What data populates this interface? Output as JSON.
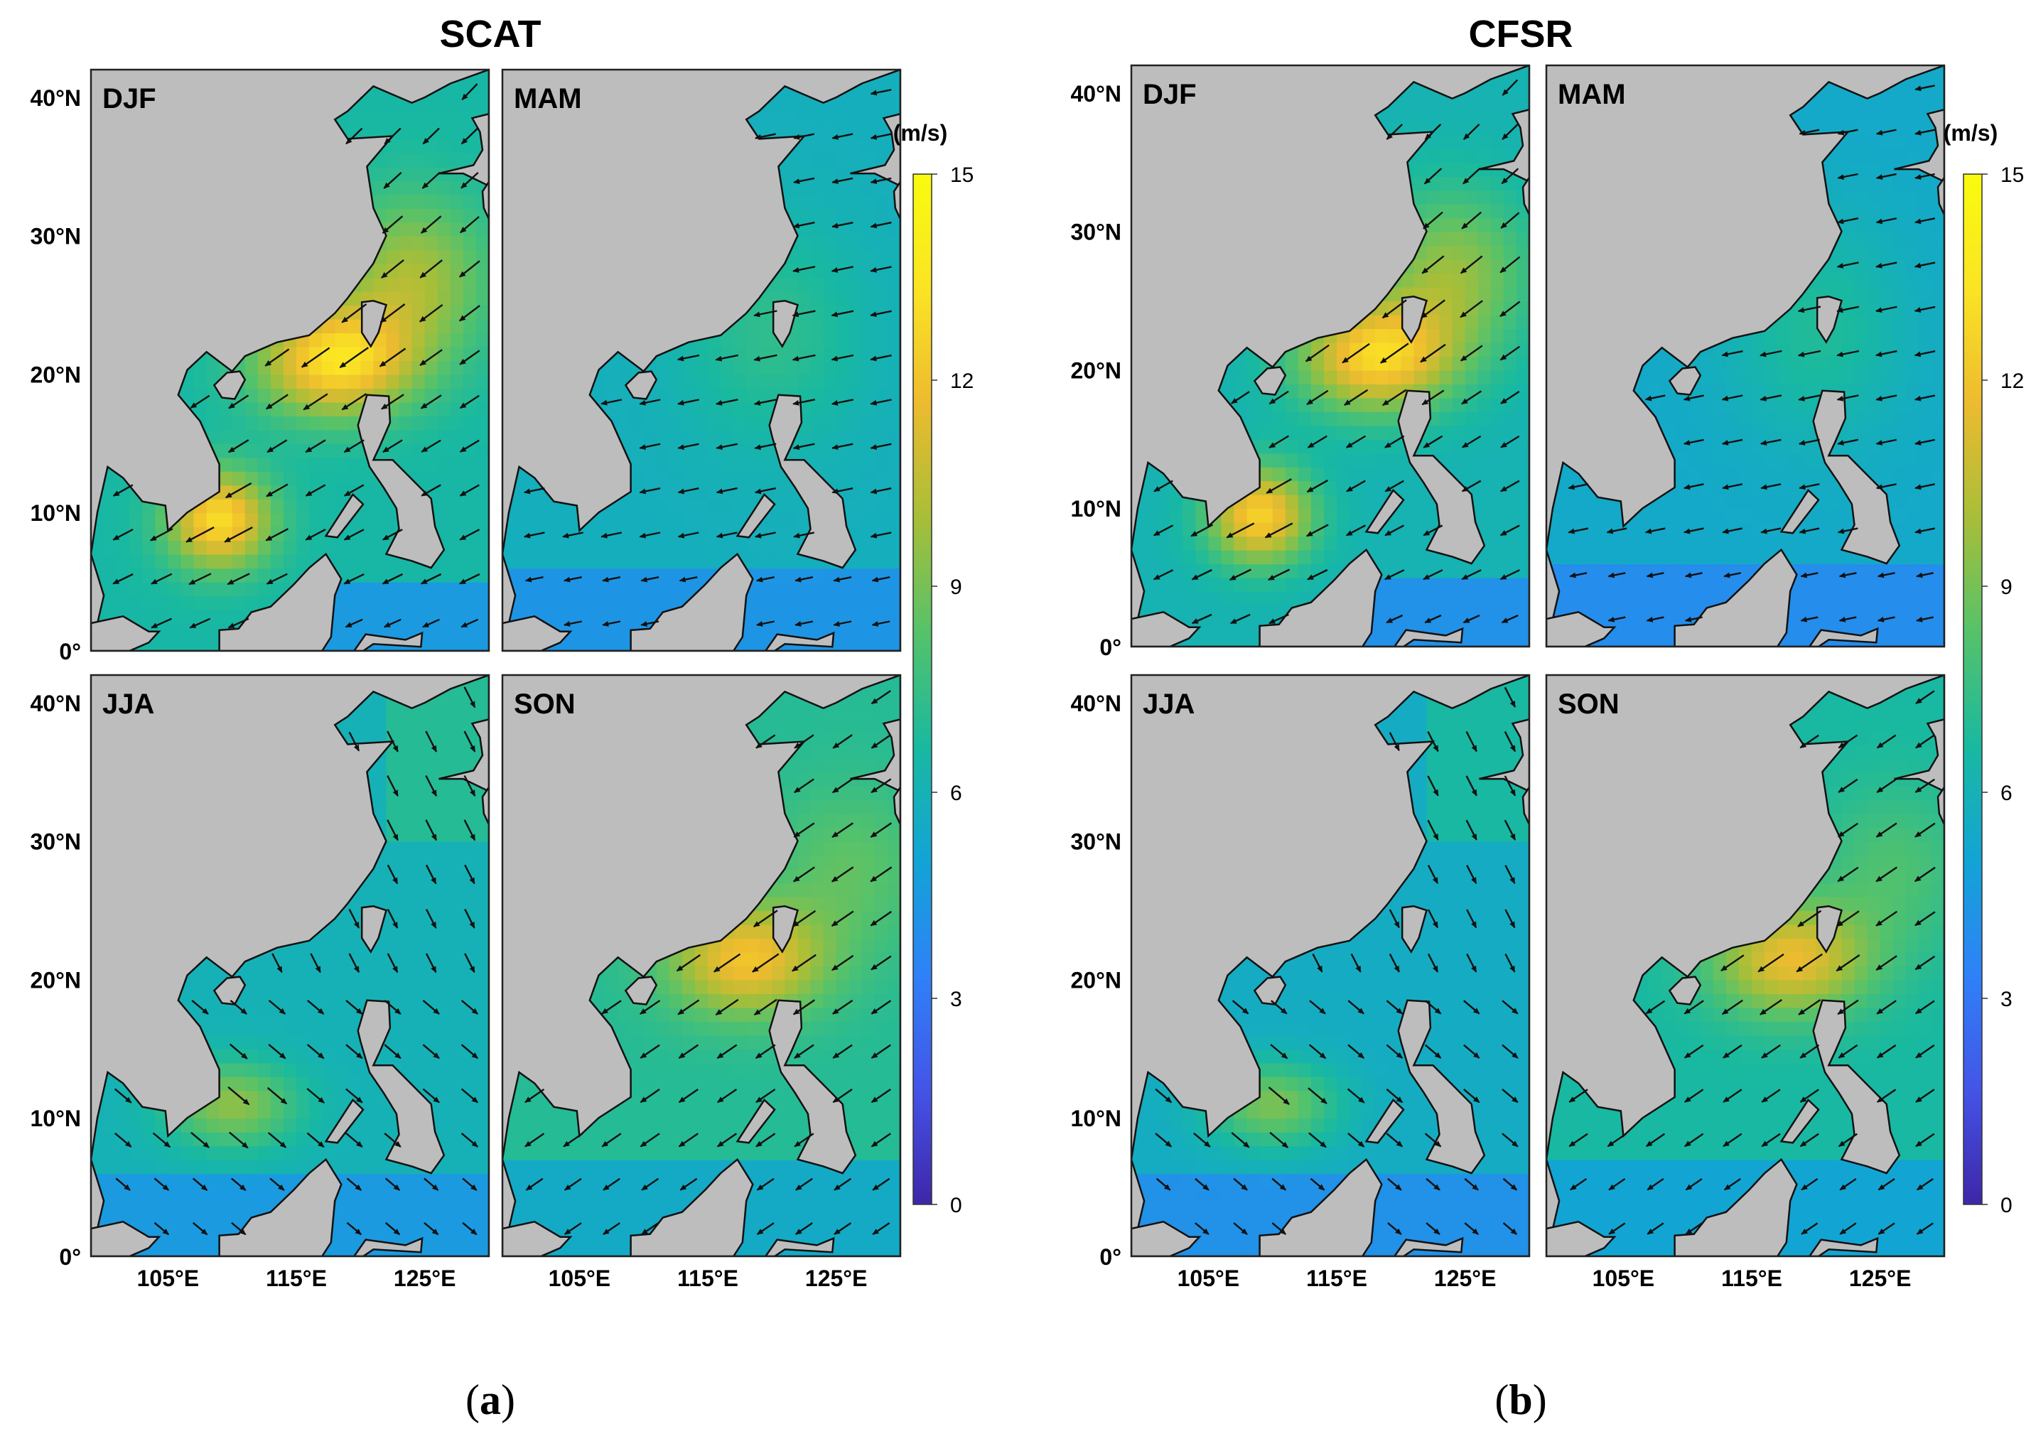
{
  "figure": {
    "panels": [
      {
        "title": "SCAT",
        "caption": {
          "open": "(",
          "letter": "a",
          "close": ")"
        },
        "seasons": [
          "DJF",
          "MAM",
          "JJA",
          "SON"
        ],
        "lat_labels": [
          "40°N",
          "30°N",
          "20°N",
          "10°N",
          "0°"
        ],
        "lon_labels": [
          "105°E",
          "115°E",
          "125°E"
        ]
      },
      {
        "title": "CFSR",
        "caption": {
          "open": "(",
          "letter": "b",
          "close": ")"
        },
        "seasons": [
          "DJF",
          "MAM",
          "JJA",
          "SON"
        ],
        "lat_labels": [
          "40°N",
          "30°N",
          "20°N",
          "10°N",
          "0°"
        ],
        "lon_labels": [
          "105°E",
          "115°E",
          "125°E"
        ]
      }
    ],
    "colorbar": {
      "unit": "(m/s)",
      "ticks": [
        "15",
        "12",
        "9",
        "6",
        "3",
        "0"
      ],
      "range": [
        0,
        15
      ],
      "colormap": [
        "#3e26a8",
        "#4454e7",
        "#2f81f8",
        "#12a4d6",
        "#19b9a0",
        "#56c26a",
        "#a8be38",
        "#edbb2f",
        "#fbe424",
        "#f9fb0e"
      ]
    },
    "land_color": "#bdbdbd",
    "coast_color": "#111111"
  },
  "chart_data": {
    "type": "heatmap",
    "variable": "wind speed",
    "unit": "(m/s)",
    "value_range": [
      0,
      15
    ],
    "datasets": [
      "SCAT",
      "CFSR"
    ],
    "seasons": [
      "DJF",
      "MAM",
      "JJA",
      "SON"
    ],
    "lat_ticks": [
      "0°",
      "10°N",
      "20°N",
      "30°N",
      "40°N"
    ],
    "lon_ticks": [
      "105°E",
      "115°E",
      "125°E"
    ],
    "approx_peak_speed": {
      "SCAT": {
        "DJF": 13,
        "MAM": 8,
        "JJA": 10,
        "SON": 12
      },
      "CFSR": {
        "DJF": 13,
        "MAM": 8,
        "JJA": 9.5,
        "SON": 11
      }
    },
    "prevailing_direction": {
      "DJF": "NE",
      "MAM": "E",
      "JJA": "SW",
      "SON": "NE"
    }
  }
}
